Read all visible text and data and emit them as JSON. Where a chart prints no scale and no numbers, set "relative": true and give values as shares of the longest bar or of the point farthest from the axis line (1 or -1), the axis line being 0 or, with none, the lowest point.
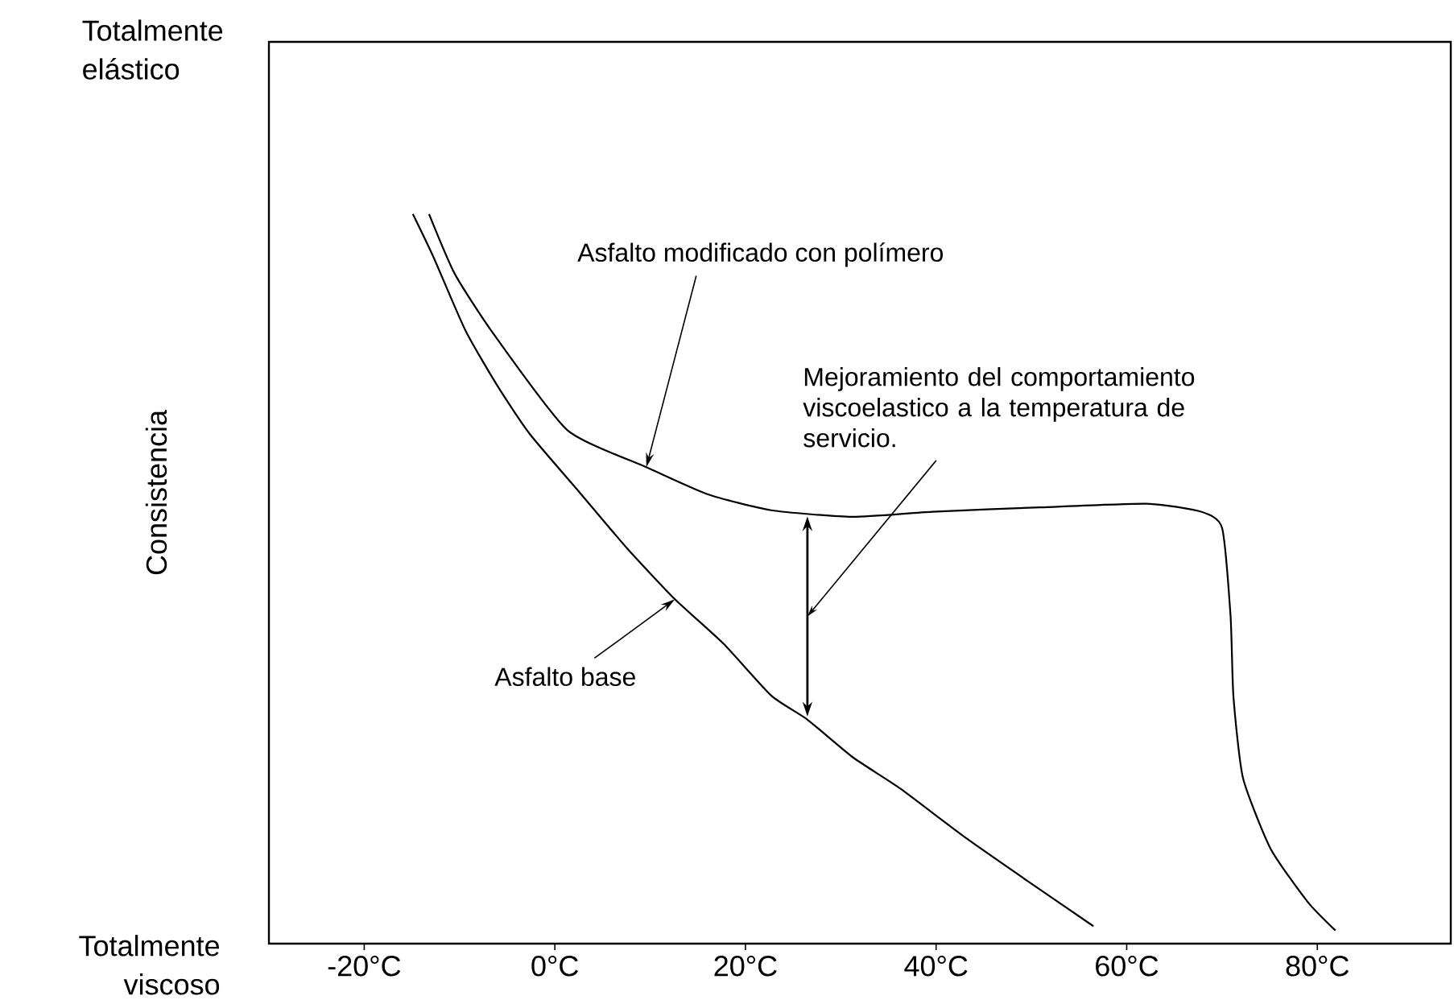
{
  "chart_data": {
    "type": "line",
    "relative": true,
    "ylabel": "Consistencia",
    "xlim": [
      -30,
      94
    ],
    "xticks": [
      {
        "value": -20,
        "label": "-20°C"
      },
      {
        "value": 0,
        "label": "0°C"
      },
      {
        "value": 20,
        "label": "20°C"
      },
      {
        "value": 40,
        "label": "40°C"
      },
      {
        "value": 60,
        "label": "60°C"
      },
      {
        "value": 80,
        "label": "80°C"
      }
    ],
    "series": [
      {
        "color": "#000000",
        "x": [
          -13.2,
          -10.5,
          -6.5,
          1.3,
          9.6,
          16.0,
          22.7,
          31.2,
          39.6,
          50.9,
          62.1,
          67.8,
          70.0,
          70.9,
          71.2,
          72.2,
          75.1,
          79.0,
          81.9
        ],
        "values": [
          1.0,
          0.918,
          0.837,
          0.704,
          0.653,
          0.616,
          0.594,
          0.585,
          0.592,
          0.598,
          0.603,
          0.592,
          0.57,
          0.448,
          0.338,
          0.227,
          0.13,
          0.057,
          0.018
        ]
      },
      {
        "color": "#000000",
        "x": [
          -14.9,
          -12.7,
          -9.4,
          -6.0,
          -2.6,
          2.5,
          7.5,
          12.6,
          17.7,
          22.7,
          26.5,
          31.2,
          36.3,
          43.0,
          49.8,
          56.5
        ],
        "values": [
          1.0,
          0.94,
          0.841,
          0.764,
          0.698,
          0.62,
          0.543,
          0.472,
          0.411,
          0.34,
          0.307,
          0.256,
          0.212,
          0.146,
          0.084,
          0.024
        ]
      }
    ],
    "annotations": [
      "Totalmente elástico",
      "Totalmente viscoso",
      "Asfalto modificado con polímero",
      "Asfalto base",
      "Mejoramiento del comportamiento viscoelastico a la temperatura de servicio."
    ]
  }
}
